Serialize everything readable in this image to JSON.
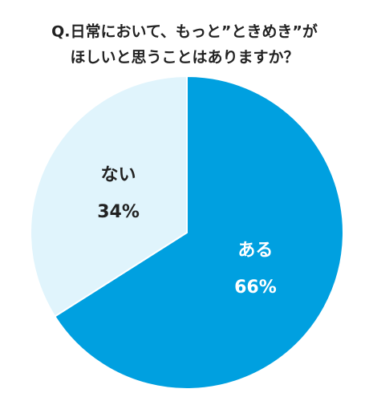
{
  "chart_data": {
    "type": "pie",
    "title": [
      "Q.日常において、もっと”ときめき”が",
      "ほしいと思うことはありますか？"
    ],
    "categories": [
      "ある",
      "ない"
    ],
    "values": [
      66,
      34
    ],
    "value_labels": [
      "66%",
      "34%"
    ],
    "colors": [
      "#00a0e0",
      "#e0f4fc"
    ],
    "label_colors": [
      "#ffffff",
      "#222222"
    ]
  }
}
